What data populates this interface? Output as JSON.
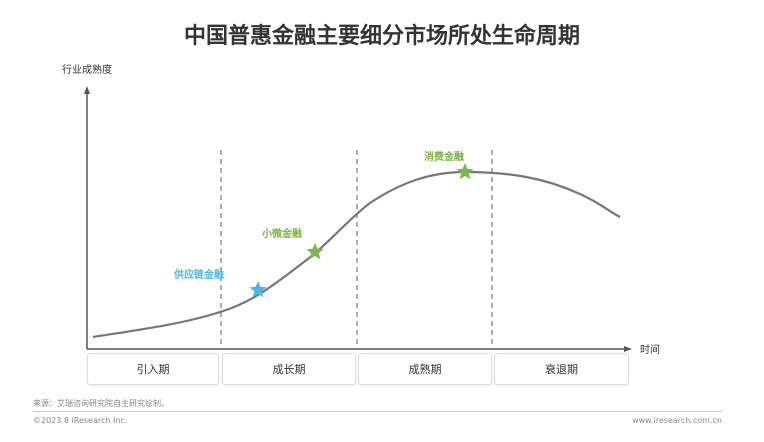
{
  "title": "中国普惠金融主要细分市场所处生命周期",
  "y_axis_label": "行业成熟度",
  "x_axis_label": "时间",
  "phases": [
    "引入期",
    "成长期",
    "成熟期",
    "衰退期"
  ],
  "markers": [
    {
      "label": "供应链金融",
      "color": "#4db8e8",
      "phase": "成长期"
    },
    {
      "label": "小微金融",
      "color": "#7ab648",
      "phase": "成长期"
    },
    {
      "label": "消费金融",
      "color": "#7ab648",
      "phase": "成熟期"
    }
  ],
  "footer": {
    "source": "来源：艾瑞咨询研究院自主研究绘制。",
    "copyright": "©2023.8 iResearch Inc.",
    "website": "www.iresearch.com.cn"
  }
}
